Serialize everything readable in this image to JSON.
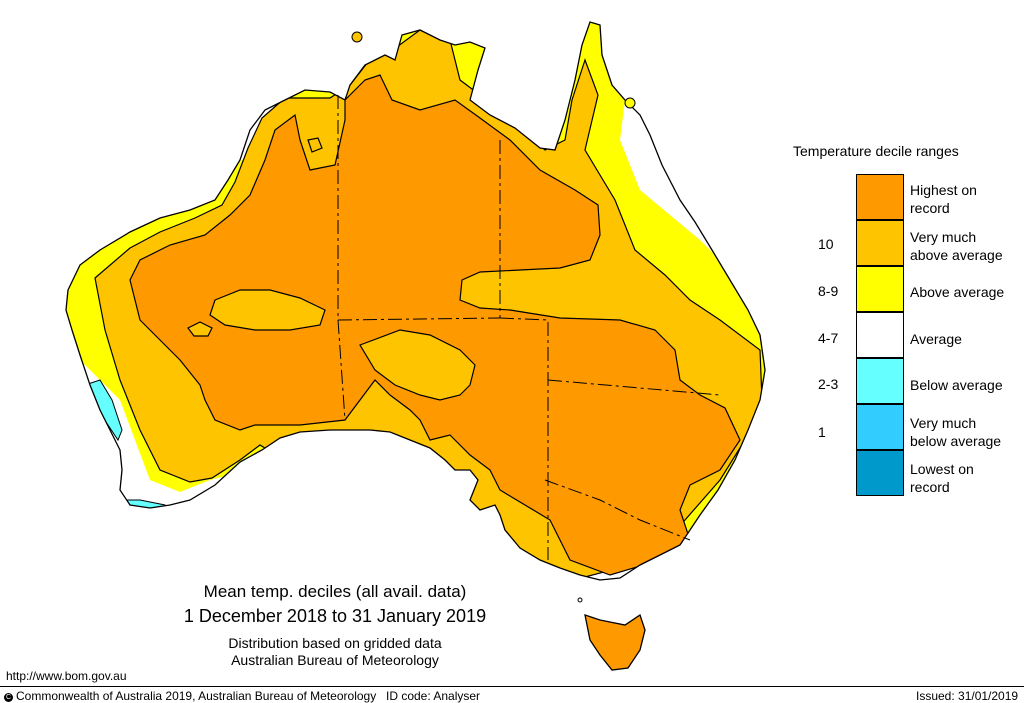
{
  "legend": {
    "title": "Temperature decile ranges",
    "items": [
      {
        "label_1": "Highest on",
        "label_2": "record",
        "decile": "",
        "color": "#ff9900"
      },
      {
        "label_1": "Very much",
        "label_2": "above average",
        "decile": "10",
        "color": "#ffc400"
      },
      {
        "label_1": "Above average",
        "label_2": "",
        "decile": "8-9",
        "color": "#ffff00"
      },
      {
        "label_1": "Average",
        "label_2": "",
        "decile": "4-7",
        "color": "#ffffff"
      },
      {
        "label_1": "Below average",
        "label_2": "",
        "decile": "2-3",
        "color": "#66ffff"
      },
      {
        "label_1": "Very much",
        "label_2": "below average",
        "decile": "1",
        "color": "#33ccff"
      },
      {
        "label_1": "Lowest on",
        "label_2": "record",
        "decile": "",
        "color": "#0099cc"
      }
    ]
  },
  "caption": {
    "title": "Mean temp. deciles (all avail. data)",
    "period": "1 December 2018 to 31 January 2019",
    "note_1": "Distribution based on gridded data",
    "note_2": "Australian Bureau of Meteorology"
  },
  "footer": {
    "url": "http://www.bom.gov.au",
    "copyright": "Commonwealth of Australia 2019, Australian Bureau of Meteorology",
    "copyright_symbol": "C",
    "id_code": "ID code: Analyser",
    "issued": "Issued: 31/01/2019"
  }
}
